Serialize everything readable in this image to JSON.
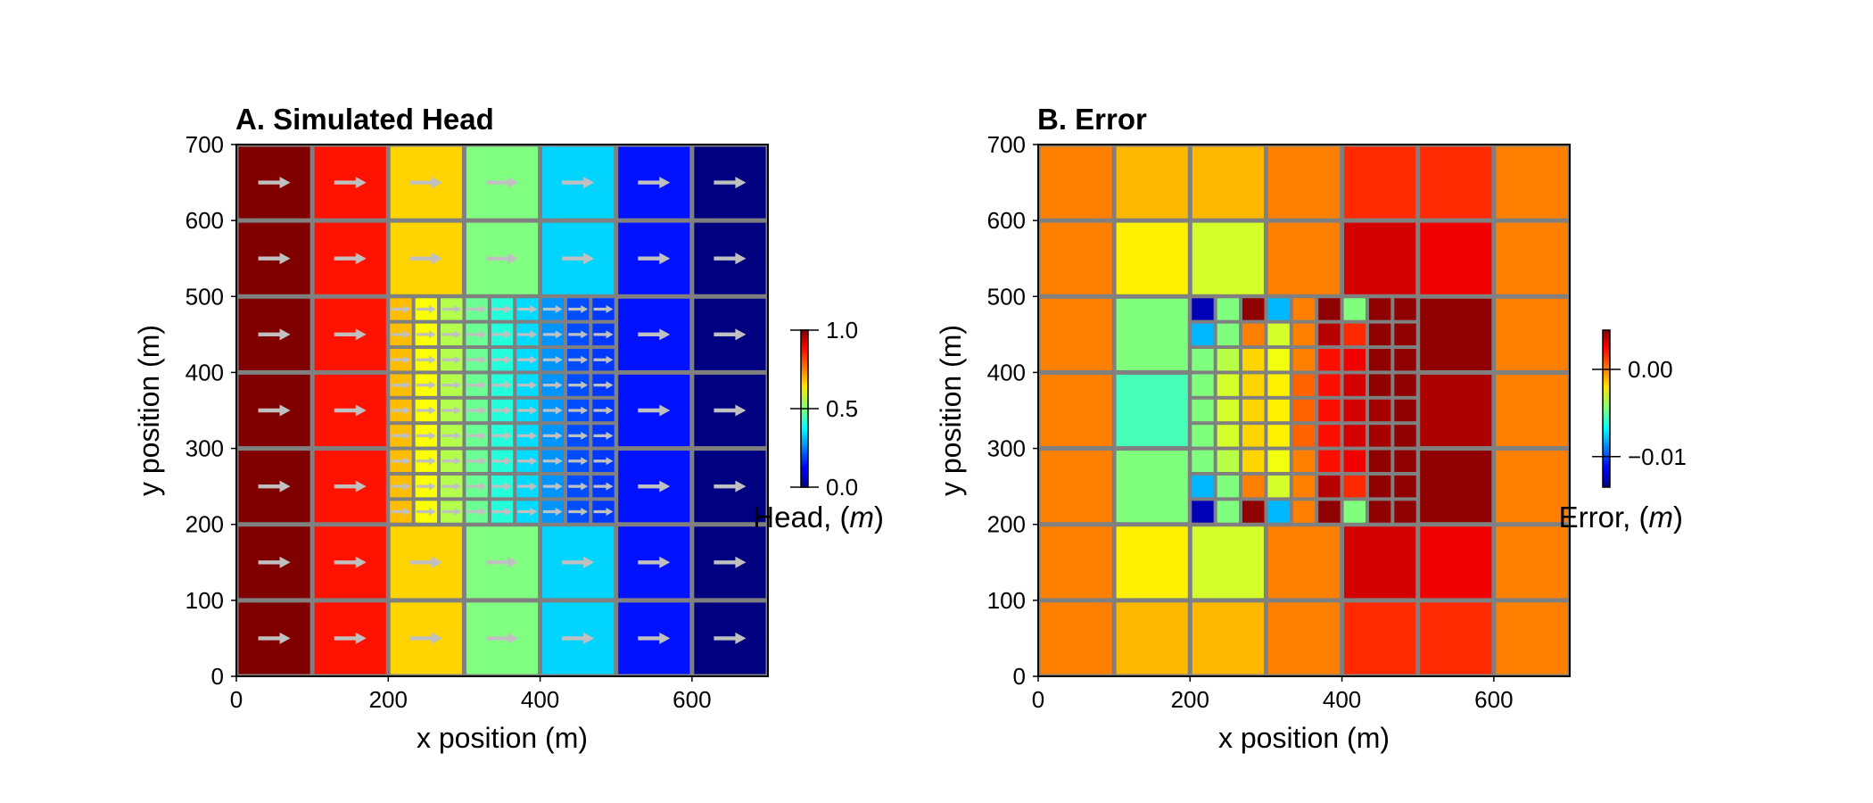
{
  "figure": {
    "background": "#ffffff",
    "grid_line_color": "#808080",
    "arrow_color": "#c0c0c0"
  },
  "chart_data": [
    {
      "type": "heatmap",
      "title": "A. Simulated Head",
      "xlabel": "x position (m)",
      "ylabel": "y position (m)",
      "xlim": [
        0,
        700
      ],
      "ylim": [
        0,
        700
      ],
      "xticks": [
        "0",
        "200",
        "400",
        "600"
      ],
      "xtick_values": [
        0,
        200,
        400,
        600
      ],
      "yticks": [
        "0",
        "100",
        "200",
        "300",
        "400",
        "500",
        "600",
        "700"
      ],
      "ytick_values": [
        0,
        100,
        200,
        300,
        400,
        500,
        600,
        700
      ],
      "colormap": "jet",
      "colorbar": {
        "label_text": "Head, (",
        "label_unit": "m",
        "label_close": ")",
        "range": [
          0,
          1
        ],
        "ticks": [
          "0.0",
          "0.5",
          "1.0"
        ],
        "tick_values": [
          0.0,
          0.5,
          1.0
        ]
      },
      "coarse_grid": {
        "cell_size": 100,
        "column_values": [
          1.0,
          0.857,
          0.667,
          0.5,
          0.333,
          0.143,
          0.0
        ]
      },
      "refined_grid": {
        "x_range": [
          200,
          500
        ],
        "y_range": [
          200,
          500
        ],
        "cell_size": 33.333,
        "column_values": [
          0.69,
          0.62,
          0.55,
          0.48,
          0.41,
          0.34,
          0.27,
          0.2,
          0.18
        ]
      },
      "flow_vectors": "uniform rightward flow, one arrow per cell"
    },
    {
      "type": "heatmap",
      "title": "B. Error",
      "xlabel": "x position (m)",
      "ylabel": "y position (m)",
      "xlim": [
        0,
        700
      ],
      "ylim": [
        0,
        700
      ],
      "xticks": [
        "0",
        "200",
        "400",
        "600"
      ],
      "xtick_values": [
        0,
        200,
        400,
        600
      ],
      "yticks": [
        "0",
        "100",
        "200",
        "300",
        "400",
        "500",
        "600",
        "700"
      ],
      "ytick_values": [
        0,
        100,
        200,
        300,
        400,
        500,
        600,
        700
      ],
      "colormap": "jet",
      "colorbar": {
        "label_text": "Error, (",
        "label_unit": "m",
        "label_close": ")",
        "range": [
          -0.0135,
          0.0045
        ],
        "ticks": [
          "−0.01",
          "0.00"
        ],
        "tick_values": [
          -0.01,
          0.0
        ]
      },
      "coarse_grid": {
        "cell_size": 100,
        "rows_top_to_bottom": [
          [
            0.0,
            -0.001,
            -0.001,
            0.0,
            0.0015,
            0.0015,
            0.0
          ],
          [
            0.0,
            -0.002,
            -0.003,
            0.0,
            0.003,
            0.0025,
            0.0
          ],
          [
            0.0,
            -0.0045,
            null,
            null,
            null,
            0.0042,
            0.0
          ],
          [
            0.0,
            -0.0055,
            null,
            null,
            null,
            0.0037,
            0.0
          ],
          [
            0.0,
            -0.0045,
            null,
            null,
            null,
            0.0042,
            0.0
          ],
          [
            0.0,
            -0.002,
            -0.003,
            0.0,
            0.003,
            0.0025,
            0.0
          ],
          [
            0.0,
            -0.001,
            -0.001,
            0.0,
            0.0015,
            0.0015,
            0.0
          ]
        ]
      },
      "refined_grid": {
        "x_range": [
          200,
          500
        ],
        "y_range": [
          200,
          500
        ],
        "cell_size": 33.333,
        "rows_top_to_bottom": [
          [
            -0.0125,
            -0.0045,
            0.0042,
            -0.008,
            0.0,
            0.0042,
            -0.0045,
            0.0042,
            0.0042
          ],
          [
            -0.008,
            -0.0045,
            0.0,
            -0.003,
            0.0,
            0.0035,
            0.0015,
            0.0042,
            0.0042
          ],
          [
            -0.0045,
            -0.0035,
            -0.0015,
            -0.0025,
            0.0,
            0.002,
            0.0025,
            0.0042,
            0.0042
          ],
          [
            -0.0045,
            -0.003,
            -0.0015,
            -0.002,
            0.0005,
            0.002,
            0.003,
            0.0042,
            0.0042
          ],
          [
            -0.0045,
            -0.003,
            -0.0015,
            -0.002,
            0.0005,
            0.002,
            0.003,
            0.0038,
            0.0042
          ],
          [
            -0.0045,
            -0.003,
            -0.0015,
            -0.002,
            0.0005,
            0.002,
            0.003,
            0.0038,
            0.0042
          ],
          [
            -0.0045,
            -0.0035,
            -0.0015,
            -0.0025,
            0.0,
            0.002,
            0.0025,
            0.0042,
            0.0042
          ],
          [
            -0.008,
            -0.0045,
            0.0,
            -0.003,
            0.0,
            0.0035,
            0.0015,
            0.0042,
            0.0042
          ],
          [
            -0.0125,
            -0.0045,
            0.0042,
            -0.008,
            0.0,
            0.0042,
            -0.0045,
            0.0042,
            0.0042
          ]
        ]
      }
    }
  ]
}
